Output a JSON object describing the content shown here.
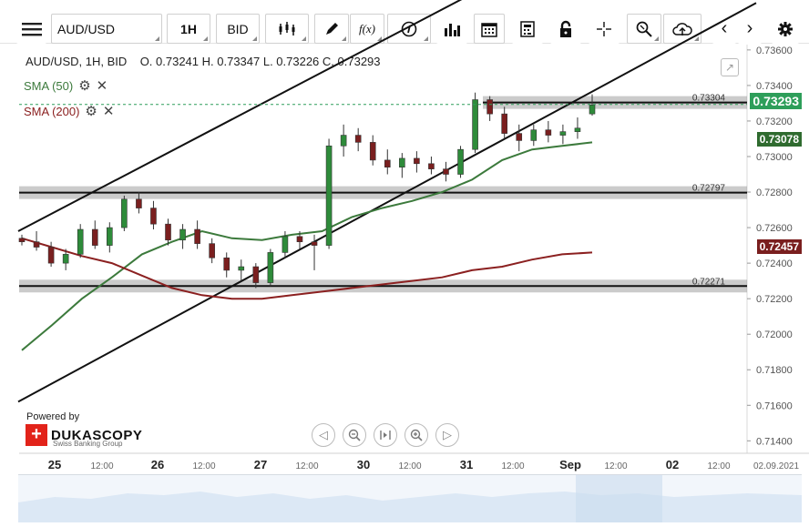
{
  "toolbar": {
    "menu_icon": "hamburger-menu-icon",
    "symbol": "AUD/USD",
    "timeframe": "1H",
    "price_side": "BID",
    "buttons": [
      {
        "name": "chart-type-button",
        "icon": "candlestick-icon"
      },
      {
        "name": "draw-button",
        "icon": "pencil-icon"
      },
      {
        "name": "indicators-button",
        "icon": "function-icon",
        "glyph": "f(x)"
      },
      {
        "name": "info-button",
        "icon": "info-icon"
      },
      {
        "name": "volume-button",
        "icon": "bar-chart-icon"
      },
      {
        "name": "calendar-button",
        "icon": "calendar-icon"
      },
      {
        "name": "calculator-button",
        "icon": "calculator-icon"
      },
      {
        "name": "lock-button",
        "icon": "lock-icon"
      },
      {
        "name": "crosshair-button",
        "icon": "crosshair-icon"
      },
      {
        "name": "zoom-button",
        "icon": "zoom-icon"
      },
      {
        "name": "upload-button",
        "icon": "cloud-upload-icon"
      },
      {
        "name": "prev-button",
        "icon": "chevron-left-icon"
      },
      {
        "name": "next-button",
        "icon": "chevron-right-icon"
      },
      {
        "name": "settings-button",
        "icon": "gear-icon"
      }
    ]
  },
  "hud": {
    "text": "AUD/USD, 1H, BID    O. 0.73241 H. 0.73347 L. 0.73226 C. 0.73293"
  },
  "indicators": [
    {
      "label": "SMA (50)",
      "color": "#3c7a3c"
    },
    {
      "label": "SMA (200)",
      "color": "#8b2020"
    }
  ],
  "price_tags": {
    "last": "0.73293",
    "sma50": "0.73078",
    "sma200": "0.72457"
  },
  "level_labels": [
    "0.73304",
    "0.72797",
    "0.72271"
  ],
  "branding": {
    "powered": "Powered by",
    "name": "DUKASCOPY",
    "tagline": "Swiss Banking Group"
  },
  "colors": {
    "sma50": "#3c7a3c",
    "sma200": "#8b2020",
    "candle_up": "#2e8b3a",
    "candle_down": "#7a1f1f",
    "last_price": "#2e9e5a"
  },
  "chart_data": {
    "type": "line",
    "title": "AUD/USD, 1H, BID",
    "ohlc_last": {
      "open": 0.73241,
      "high": 0.73347,
      "low": 0.73226,
      "close": 0.73293
    },
    "y_ticks": [
      "0.73600",
      "0.73400",
      "0.73200",
      "0.73000",
      "0.72800",
      "0.72600",
      "0.72400",
      "0.72200",
      "0.72000",
      "0.71800",
      "0.71600",
      "0.71400"
    ],
    "ylim": [
      0.7133,
      0.7363
    ],
    "x_labels": [
      "25",
      "12:00",
      "26",
      "12:00",
      "27",
      "12:00",
      "30",
      "12:00",
      "31",
      "12:00",
      "Sep",
      "12:00",
      "02",
      "12:00",
      "02.09.2021"
    ],
    "series": [
      {
        "name": "SMA (50)",
        "values": [
          0.7191,
          0.7205,
          0.722,
          0.7232,
          0.7245,
          0.7252,
          0.7258,
          0.7254,
          0.7253,
          0.7256,
          0.7258,
          0.7266,
          0.7271,
          0.7275,
          0.728,
          0.7287,
          0.7298,
          0.7304,
          0.7306,
          0.7308
        ]
      },
      {
        "name": "SMA (200)",
        "values": [
          0.7254,
          0.7249,
          0.7244,
          0.724,
          0.7233,
          0.7226,
          0.7222,
          0.722,
          0.722,
          0.7222,
          0.7224,
          0.7226,
          0.7228,
          0.723,
          0.7232,
          0.7236,
          0.7238,
          0.7242,
          0.7245,
          0.7246
        ]
      }
    ],
    "candles": [
      [
        0.7254,
        0.7256,
        0.725,
        0.7252
      ],
      [
        0.7252,
        0.7258,
        0.7247,
        0.7249
      ],
      [
        0.7249,
        0.7252,
        0.7238,
        0.724
      ],
      [
        0.724,
        0.7248,
        0.7236,
        0.7245
      ],
      [
        0.7245,
        0.7262,
        0.7243,
        0.7259
      ],
      [
        0.7259,
        0.7264,
        0.7248,
        0.725
      ],
      [
        0.725,
        0.7263,
        0.7246,
        0.726
      ],
      [
        0.726,
        0.7278,
        0.7258,
        0.7276
      ],
      [
        0.7276,
        0.728,
        0.7268,
        0.7271
      ],
      [
        0.7271,
        0.7275,
        0.7259,
        0.7262
      ],
      [
        0.7262,
        0.7265,
        0.725,
        0.7253
      ],
      [
        0.7253,
        0.7262,
        0.7248,
        0.7259
      ],
      [
        0.7259,
        0.7264,
        0.7248,
        0.7251
      ],
      [
        0.7251,
        0.7254,
        0.724,
        0.7243
      ],
      [
        0.7243,
        0.7246,
        0.7232,
        0.7236
      ],
      [
        0.7236,
        0.7242,
        0.723,
        0.7238
      ],
      [
        0.7238,
        0.724,
        0.7226,
        0.7229
      ],
      [
        0.7229,
        0.7248,
        0.7227,
        0.7246
      ],
      [
        0.7246,
        0.7258,
        0.7243,
        0.7255
      ],
      [
        0.7255,
        0.7258,
        0.7248,
        0.7252
      ],
      [
        0.7252,
        0.7256,
        0.7236,
        0.725
      ],
      [
        0.725,
        0.731,
        0.7248,
        0.7306
      ],
      [
        0.7306,
        0.7318,
        0.73,
        0.7312
      ],
      [
        0.7312,
        0.7316,
        0.7303,
        0.7308
      ],
      [
        0.7308,
        0.7312,
        0.7295,
        0.7298
      ],
      [
        0.7298,
        0.7304,
        0.729,
        0.7294
      ],
      [
        0.7294,
        0.7302,
        0.7288,
        0.7299
      ],
      [
        0.7299,
        0.7303,
        0.7291,
        0.7296
      ],
      [
        0.7296,
        0.73,
        0.729,
        0.7293
      ],
      [
        0.7293,
        0.7297,
        0.7286,
        0.729
      ],
      [
        0.729,
        0.7306,
        0.7288,
        0.7304
      ],
      [
        0.7304,
        0.7336,
        0.7302,
        0.7332
      ],
      [
        0.7332,
        0.7334,
        0.732,
        0.7324
      ],
      [
        0.7324,
        0.7328,
        0.731,
        0.7313
      ],
      [
        0.7313,
        0.7318,
        0.7303,
        0.7309
      ],
      [
        0.7309,
        0.7318,
        0.7306,
        0.7315
      ],
      [
        0.7315,
        0.732,
        0.7308,
        0.7312
      ],
      [
        0.7312,
        0.7318,
        0.7307,
        0.7314
      ],
      [
        0.7314,
        0.7322,
        0.731,
        0.7316
      ],
      [
        0.7324,
        0.7335,
        0.7323,
        0.7329
      ]
    ],
    "levels": [
      0.73304,
      0.72797,
      0.72271
    ],
    "trendlines": [
      {
        "from": [
          0,
          0.7258
        ],
        "to": [
          26,
          0.7371
        ]
      },
      {
        "from": [
          0,
          0.7162
        ],
        "to": [
          40,
          0.7341
        ]
      }
    ],
    "last_price": 0.73293,
    "grid": false,
    "legend": "top-left"
  }
}
